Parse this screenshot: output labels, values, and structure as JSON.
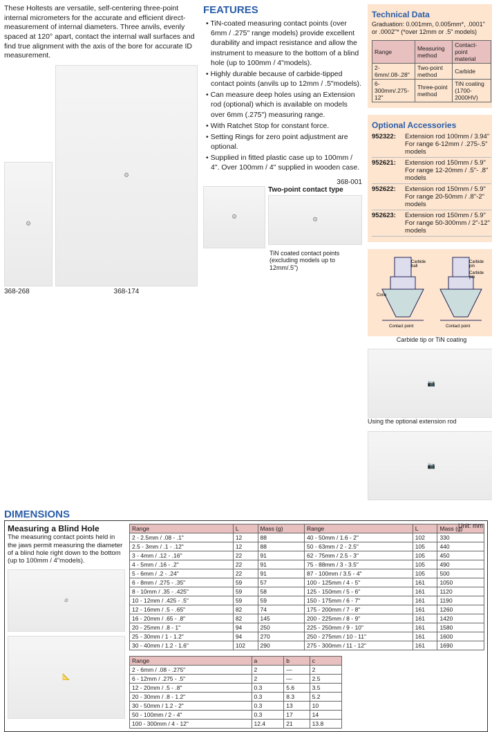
{
  "intro": "These Holtests are versatile, self-centering three-point internal micrometers for the accurate and efficient direct-measurement of internal diameters. Three anvils, evenly spaced at 120° apart, contact the internal wall surfaces and find true alignment with the axis of the bore for accurate ID measurement.",
  "img_captions": {
    "a": "368-268",
    "b": "368-174",
    "c": "368-001",
    "d": "Two-point contact type",
    "e": "TiN coated contact points (excluding models up to 12mm/.5\")",
    "f": "Carbide tip or TiN coating",
    "g": "Using the optional extension rod"
  },
  "features_h": "FEATURES",
  "features": [
    "TiN-coated measuring contact points (over 6mm / .275\" range models) provide excellent durability and impact resistance and allow the instrument to measure to the bottom of a blind hole (up to 100mm / 4\"models).",
    "Highly durable because of carbide-tipped contact points (anvils up to 12mm / .5\"models).",
    "Can measure deep holes using an Extension rod (optional) which is available on models over 6mm (.275\") measuring range.",
    "With Ratchet Stop for constant force.",
    "Setting Rings for zero point adjustment are optional.",
    "Supplied in fitted plastic case up to 100mm / 4\". Over 100mm / 4\" supplied in wooden case."
  ],
  "dimensions_h": "DIMENSIONS",
  "dim_block": {
    "title": "Measuring a Blind Hole",
    "text": "The measuring contact points held in the jaws permit measuring the diameter of a blind hole right down to the bottom (up to 100mm / 4\"models).",
    "unit": "Unit: mm"
  },
  "dim_table1": {
    "headers": [
      "Range",
      "L",
      "Mass (g)",
      "Range",
      "L",
      "Mass (g)"
    ],
    "rows": [
      [
        "2 - 2.5mm / .08 - .1\"",
        "12",
        "88",
        "40 - 50mm / 1.6 - 2\"",
        "102",
        "330"
      ],
      [
        "2.5 - 3mm / .1 - .12\"",
        "12",
        "88",
        "50 - 63mm / 2 - 2.5\"",
        "105",
        "440"
      ],
      [
        "3 - 4mm / .12 - .16\"",
        "22",
        "91",
        "62 - 75mm / 2.5 - 3\"",
        "105",
        "450"
      ],
      [
        "4 - 5mm / .16 - .2\"",
        "22",
        "91",
        "75 - 88mm / 3 - 3.5\"",
        "105",
        "490"
      ],
      [
        "5 - 6mm / .2 - .24\"",
        "22",
        "91",
        "87 - 100mm / 3.5 - 4\"",
        "105",
        "500"
      ],
      [
        "6 - 8mm / .275 - .35\"",
        "59",
        "57",
        "100 - 125mm / 4 - 5\"",
        "161",
        "1050"
      ],
      [
        "8 - 10mm / .35 - .425\"",
        "59",
        "58",
        "125 - 150mm / 5 - 6\"",
        "161",
        "1120"
      ],
      [
        "10 - 12mm / .425 - .5\"",
        "59",
        "59",
        "150 - 175mm / 6 - 7\"",
        "161",
        "1190"
      ],
      [
        "12 - 16mm / .5 - .65\"",
        "82",
        "74",
        "175 - 200mm / 7 - 8\"",
        "161",
        "1260"
      ],
      [
        "16 - 20mm / .65 - .8\"",
        "82",
        "145",
        "200 - 225mm / 8 - 9\"",
        "161",
        "1420"
      ],
      [
        "20 - 25mm / .8 - 1\"",
        "94",
        "250",
        "225 - 250mm / 9 - 10\"",
        "161",
        "1580"
      ],
      [
        "25 - 30mm / 1 - 1.2\"",
        "94",
        "270",
        "250 - 275mm / 10 - 11\"",
        "161",
        "1600"
      ],
      [
        "30 - 40mm / 1.2 - 1.6\"",
        "102",
        "290",
        "275 - 300mm / 11 - 12\"",
        "161",
        "1690"
      ]
    ]
  },
  "dim_table2": {
    "headers": [
      "Range",
      "a",
      "b",
      "c"
    ],
    "rows": [
      [
        "2 - 6mm / .08 - .275\"",
        "2",
        "—",
        "2"
      ],
      [
        "6 - 12mm / .275 - .5\"",
        "2",
        "—",
        "2.5"
      ],
      [
        "12 - 20mm / .5 - .8\"",
        "0.3",
        "5.6",
        "3.5"
      ],
      [
        "20 - 30mm / .8 - 1.2\"",
        "0.3",
        "8.3",
        "5.2"
      ],
      [
        "30 - 50mm / 1.2 - 2\"",
        "0.3",
        "13",
        "10"
      ],
      [
        "50 - 100mm / 2 - 4\"",
        "0.3",
        "17",
        "14"
      ],
      [
        "100 - 300mm / 4 - 12\"",
        "12.4",
        "21",
        "13.8"
      ]
    ]
  },
  "tech": {
    "head": "Technical Data",
    "sub": "Graduation: 0.001mm, 0.005mm*, .0001\" or .0002\"*  (*over 12mm or .5\" models)",
    "headers": [
      "Range",
      "Measuring method",
      "Contact-point material"
    ],
    "rows": [
      [
        "2-6mm/.08-.28\"",
        "Two-point method",
        "Carbide"
      ],
      [
        "6-300mm/.275-12\"",
        "Three-point method",
        "TiN coating (1700-2000HV)"
      ]
    ]
  },
  "acc": {
    "head": "Optional Accessories",
    "items": [
      {
        "code": "952322:",
        "desc": "Extension rod 100mm / 3.94\"  For range 6-12mm / .275-.5\" models"
      },
      {
        "code": "952621:",
        "desc": "Extension rod 150mm / 5.9\"  For range 12-20mm / .5\"- .8\" models"
      },
      {
        "code": "952622:",
        "desc": "Extension rod 150mm / 5.9\"  For range 20-50mm / .8\"-2\" models"
      },
      {
        "code": "952623:",
        "desc": "Extension rod 150mm / 5.9\"  For range 50-300mm / 2\"-12\" models"
      }
    ]
  },
  "diag_labels": [
    "Carbide ball",
    "Carbide pin",
    "Cone",
    "Contact point"
  ]
}
